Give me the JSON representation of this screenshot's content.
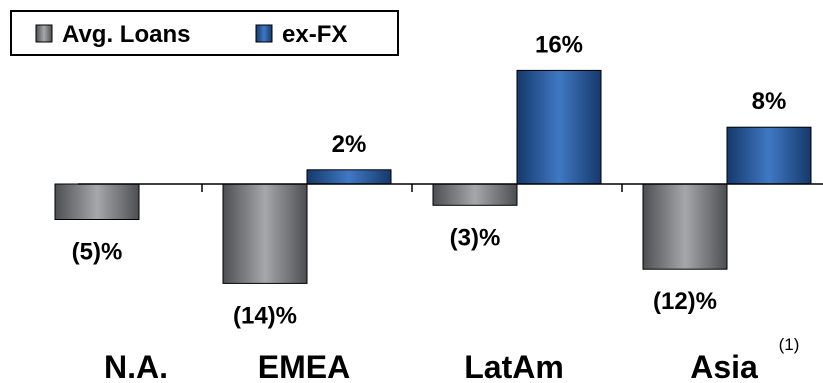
{
  "chart_data": {
    "type": "bar",
    "title": "",
    "xlabel": "",
    "ylabel": "",
    "categories": [
      "N.A.",
      "EMEA",
      "LatAm",
      "Asia"
    ],
    "category_footnote": {
      "index": 3,
      "text": "(1)"
    },
    "series": [
      {
        "name": "Avg. Loans",
        "values": [
          -5,
          -14,
          -3,
          -12
        ],
        "labels": [
          "(5)%",
          "(14)%",
          "(3)%",
          "(12)%"
        ],
        "color": "#6d6f72"
      },
      {
        "name": "ex-FX",
        "values": [
          null,
          2,
          16,
          8
        ],
        "labels": [
          "",
          "2%",
          "16%",
          "8%"
        ],
        "color": "#1f4f8f"
      }
    ],
    "ylim": [
      -16.5,
      20
    ],
    "grid": false,
    "legend": "top-left",
    "colors": {
      "gray_light": "#a5a7aa",
      "gray_dark": "#4d4f52",
      "blue_light": "#3f78c4",
      "blue_dark": "#16396b",
      "axis": "#000000"
    }
  }
}
